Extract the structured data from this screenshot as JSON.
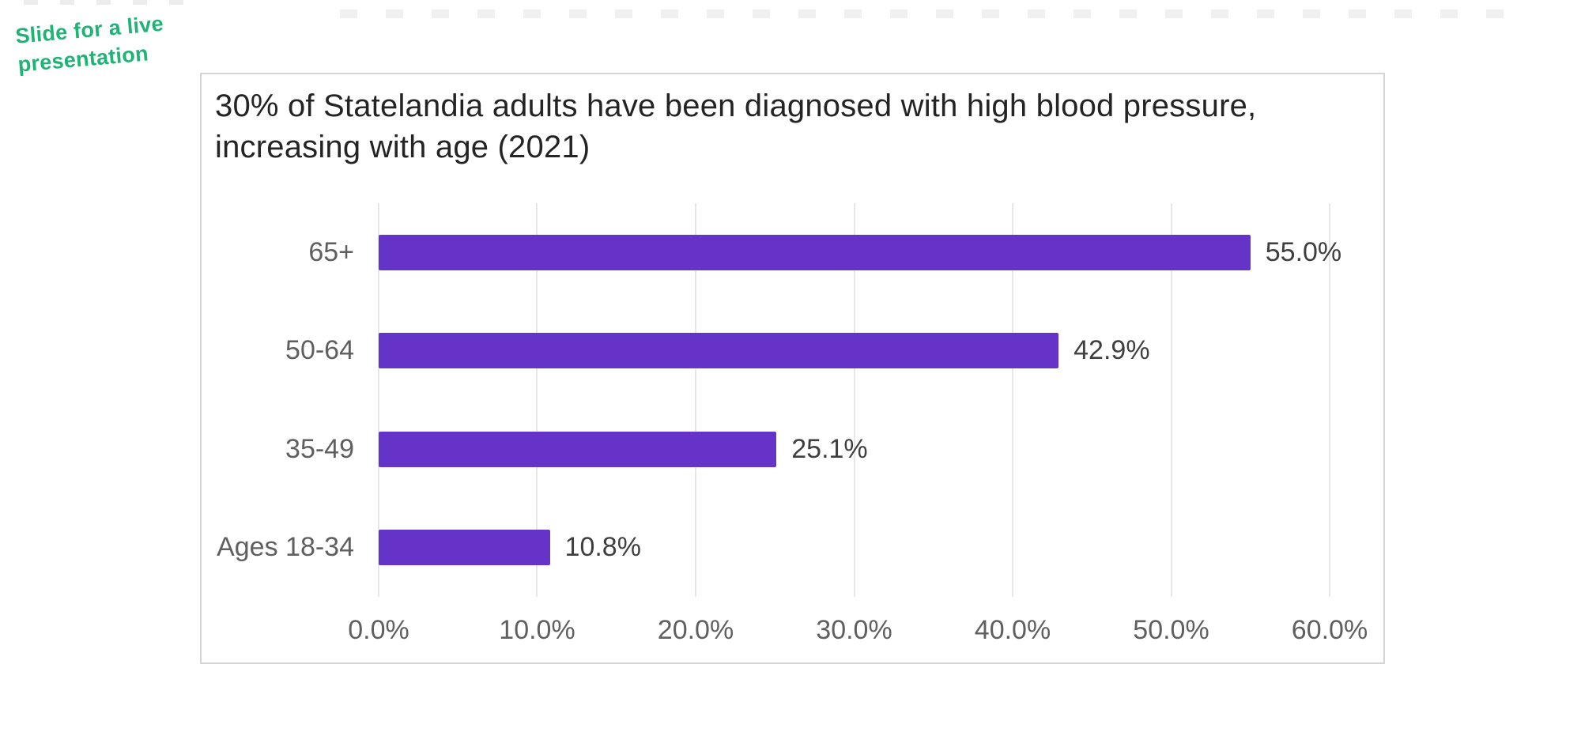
{
  "annotation": {
    "lines": [
      "Slide for a live",
      "presentation"
    ],
    "color": "#1fb375"
  },
  "card": {
    "title_lines": [
      "30% of Statelandia adults have been diagnosed with high blood pressure,",
      "increasing with age (2021)"
    ]
  },
  "chart_data": {
    "type": "bar",
    "orientation": "horizontal",
    "title": "30% of Statelandia adults have been diagnosed with high blood pressure, increasing with age (2021)",
    "categories": [
      "65+",
      "50-64",
      "35-49",
      "Ages 18-34"
    ],
    "values": [
      55.0,
      42.9,
      25.1,
      10.8
    ],
    "value_labels": [
      "55.0%",
      "42.9%",
      "25.1%",
      "10.8%"
    ],
    "x_tick_values": [
      0,
      10,
      20,
      30,
      40,
      50,
      60
    ],
    "x_tick_labels": [
      "0.0%",
      "10.0%",
      "20.0%",
      "30.0%",
      "40.0%",
      "50.0%",
      "60.0%"
    ],
    "xlim": [
      0,
      60
    ],
    "xlabel": "",
    "ylabel": "",
    "grid": true,
    "legend": false,
    "colors": {
      "bar": "#6633c8",
      "category_label": "#5f5f5f",
      "value_label": "#3f3f3f",
      "tick_label": "#5f5f5f",
      "gridline": "#e7e7e7",
      "title": "#242424",
      "card_border": "#d5d5d5",
      "annotation_green": "#1fb375"
    }
  }
}
